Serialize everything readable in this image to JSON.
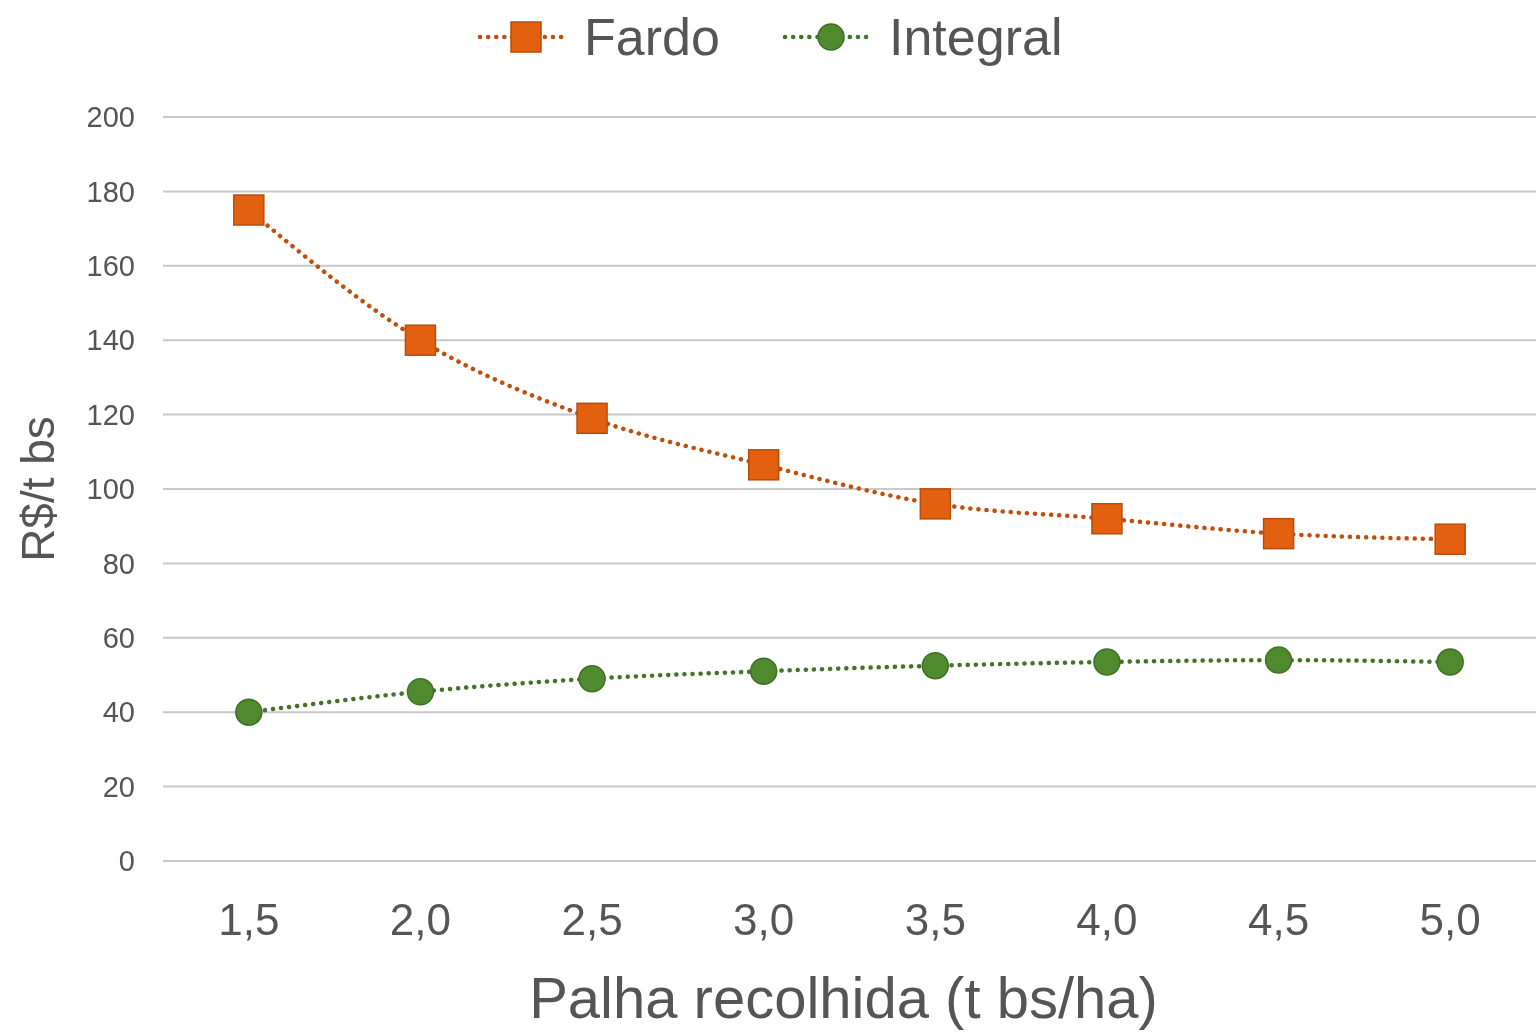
{
  "chart_data": {
    "type": "line",
    "xlabel": "Palha recolhida (t bs/ha)",
    "ylabel": "R$/t bs",
    "categories": [
      "1,5",
      "2,0",
      "2,5",
      "3,0",
      "3,5",
      "4,0",
      "4,5",
      "5,0"
    ],
    "series": [
      {
        "name": "Fardo",
        "color": "#e2600f",
        "marker": "square",
        "values": [
          175,
          140,
          119,
          106.5,
          96,
          92,
          88,
          86.5
        ]
      },
      {
        "name": "Integral",
        "color": "#4f8a2e",
        "marker": "circle",
        "values": [
          40,
          45.5,
          49,
          51,
          52.5,
          53.5,
          54,
          53.5
        ]
      }
    ],
    "ylim": [
      0,
      200
    ],
    "yticks": [
      0,
      20,
      40,
      60,
      80,
      100,
      120,
      140,
      160,
      180,
      200
    ],
    "grid": "y",
    "legend": "top",
    "line_style": "dotted"
  }
}
